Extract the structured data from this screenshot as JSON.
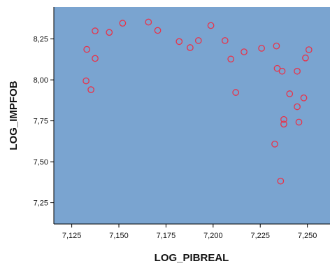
{
  "chart_data": {
    "type": "scatter",
    "xlabel": "LOG_PIBREAL",
    "ylabel": "LOG_IMPFOB",
    "xlim": [
      7.1155,
      7.262
    ],
    "ylim": [
      7.12,
      8.445
    ],
    "x_ticks": [
      "7,125",
      "7,150",
      "7,175",
      "7,200",
      "7,225",
      "7,250"
    ],
    "y_ticks": [
      "7,25",
      "7,50",
      "7,75",
      "8,00",
      "8,25"
    ],
    "x_tick_values": [
      7.125,
      7.15,
      7.175,
      7.2,
      7.225,
      7.25
    ],
    "y_tick_values": [
      7.25,
      7.5,
      7.75,
      8.0,
      8.25
    ],
    "grid": false,
    "colors": {
      "plot_background": "#7aa4d0",
      "marker": "#e8334a",
      "axis": "#000000"
    },
    "series": [
      {
        "marker": "open-circle",
        "points": [
          {
            "x": 7.133,
            "y": 8.186
          },
          {
            "x": 7.1374,
            "y": 8.299
          },
          {
            "x": 7.1374,
            "y": 8.131
          },
          {
            "x": 7.1326,
            "y": 7.994
          },
          {
            "x": 7.1352,
            "y": 7.94
          },
          {
            "x": 7.1449,
            "y": 8.29
          },
          {
            "x": 7.152,
            "y": 8.346
          },
          {
            "x": 7.1657,
            "y": 8.353
          },
          {
            "x": 7.1706,
            "y": 8.302
          },
          {
            "x": 7.182,
            "y": 8.234
          },
          {
            "x": 7.1878,
            "y": 8.197
          },
          {
            "x": 7.1922,
            "y": 8.24
          },
          {
            "x": 7.1988,
            "y": 8.332
          },
          {
            "x": 7.2063,
            "y": 8.24
          },
          {
            "x": 7.2094,
            "y": 8.127
          },
          {
            "x": 7.212,
            "y": 7.923
          },
          {
            "x": 7.2164,
            "y": 8.171
          },
          {
            "x": 7.2257,
            "y": 8.193
          },
          {
            "x": 7.2327,
            "y": 7.608
          },
          {
            "x": 7.2336,
            "y": 8.207
          },
          {
            "x": 7.234,
            "y": 8.07
          },
          {
            "x": 7.2358,
            "y": 7.382
          },
          {
            "x": 7.2366,
            "y": 8.053
          },
          {
            "x": 7.2375,
            "y": 7.758
          },
          {
            "x": 7.2375,
            "y": 7.73
          },
          {
            "x": 7.2406,
            "y": 7.915
          },
          {
            "x": 7.2446,
            "y": 8.053
          },
          {
            "x": 7.2446,
            "y": 7.836
          },
          {
            "x": 7.2455,
            "y": 7.742
          },
          {
            "x": 7.2481,
            "y": 7.89
          },
          {
            "x": 7.249,
            "y": 8.134
          },
          {
            "x": 7.2508,
            "y": 8.184
          }
        ]
      }
    ]
  }
}
